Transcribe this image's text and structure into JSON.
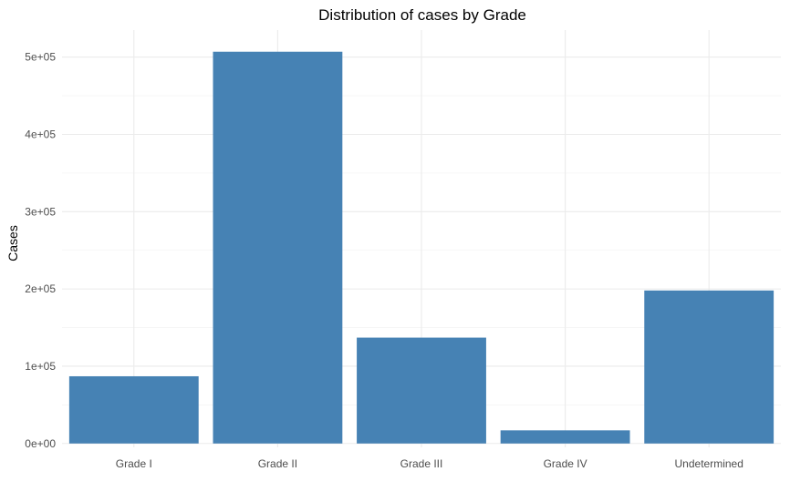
{
  "chart_data": {
    "type": "bar",
    "title": "Distribution of cases by Grade",
    "xlabel": "",
    "ylabel": "Cases",
    "categories": [
      "Grade I",
      "Grade II",
      "Grade III",
      "Grade IV",
      "Undetermined"
    ],
    "values": [
      87000,
      507000,
      137000,
      17000,
      198000
    ],
    "ylim": [
      -5000,
      535000
    ],
    "yticks": [
      0,
      100000,
      200000,
      300000,
      400000,
      500000
    ],
    "ytick_labels": [
      "0e+00",
      "1e+05",
      "2e+05",
      "3e+05",
      "4e+05",
      "5e+05"
    ],
    "bar_color": "#4682b4",
    "grid": true,
    "legend": "none"
  }
}
